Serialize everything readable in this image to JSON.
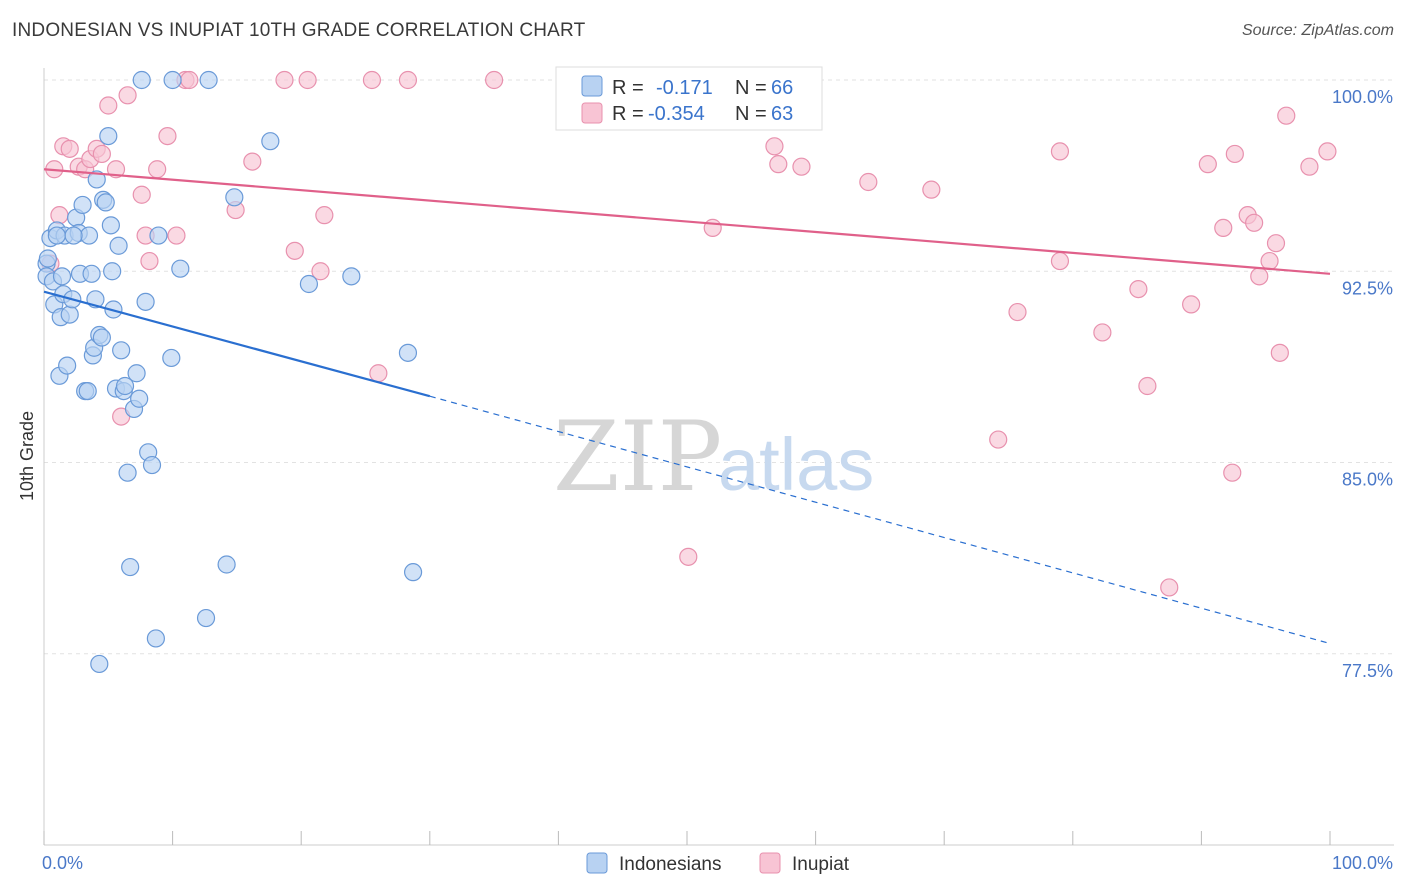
{
  "title": "INDONESIAN VS INUPIAT 10TH GRADE CORRELATION CHART",
  "source": "Source: ZipAtlas.com",
  "watermark": {
    "zip": "ZIP",
    "atlas": "atlas"
  },
  "colors": {
    "blue_fill": "#b8d2f2",
    "blue_stroke": "#6a9ad8",
    "blue_line": "#2a6fd0",
    "pink_fill": "#f8c4d4",
    "pink_stroke": "#e891ae",
    "pink_line": "#e0608a",
    "tick_text": "#4a78c8",
    "grid": "#e2e2e2"
  },
  "legend": {
    "rows": [
      {
        "r_label": "R = ",
        "r_value": "-0.171",
        "n_label": "N = ",
        "n_value": "66"
      },
      {
        "r_label": "R = ",
        "r_value": "-0.354",
        "n_label": "N = ",
        "n_value": "63"
      }
    ]
  },
  "chart_data": {
    "type": "scatter",
    "xlabel": "",
    "ylabel": "10th Grade",
    "xlim": [
      0,
      100
    ],
    "ylim": [
      70.0,
      100.5
    ],
    "x_tick_labels": [
      "0.0%",
      "100.0%"
    ],
    "y_ticks": [
      77.5,
      85.0,
      92.5,
      100.0
    ],
    "y_tick_labels": [
      "77.5%",
      "85.0%",
      "92.5%",
      "100.0%"
    ],
    "grid": true,
    "legend_position": "bottom",
    "series": [
      {
        "name": "Indonesians",
        "color": "#b8d2f2",
        "trend": {
          "x": [
            0,
            30
          ],
          "y": [
            91.7,
            87.6
          ],
          "dashed_to": [
            100,
            77.9
          ]
        },
        "points": [
          [
            0.2,
            92.8
          ],
          [
            0.2,
            92.3
          ],
          [
            0.3,
            93.0
          ],
          [
            0.5,
            93.8
          ],
          [
            0.7,
            92.1
          ],
          [
            0.8,
            91.2
          ],
          [
            1.0,
            94.1
          ],
          [
            1.2,
            88.4
          ],
          [
            1.3,
            90.7
          ],
          [
            1.5,
            91.6
          ],
          [
            1.6,
            93.9
          ],
          [
            1.8,
            88.8
          ],
          [
            2.0,
            90.8
          ],
          [
            2.2,
            91.4
          ],
          [
            2.5,
            94.6
          ],
          [
            2.7,
            94.0
          ],
          [
            2.8,
            92.4
          ],
          [
            3.0,
            95.1
          ],
          [
            3.2,
            87.8
          ],
          [
            3.4,
            87.8
          ],
          [
            3.5,
            93.9
          ],
          [
            3.7,
            92.4
          ],
          [
            3.8,
            89.2
          ],
          [
            3.9,
            89.5
          ],
          [
            4.0,
            91.4
          ],
          [
            4.1,
            96.1
          ],
          [
            4.3,
            90.0
          ],
          [
            4.5,
            89.9
          ],
          [
            4.6,
            95.3
          ],
          [
            4.8,
            95.2
          ],
          [
            5.0,
            97.8
          ],
          [
            5.2,
            94.3
          ],
          [
            5.3,
            92.5
          ],
          [
            5.4,
            91.0
          ],
          [
            5.6,
            87.9
          ],
          [
            5.8,
            93.5
          ],
          [
            6.0,
            89.4
          ],
          [
            6.2,
            87.8
          ],
          [
            6.3,
            88.0
          ],
          [
            6.5,
            84.6
          ],
          [
            6.7,
            80.9
          ],
          [
            7.0,
            87.1
          ],
          [
            7.2,
            88.5
          ],
          [
            7.4,
            87.5
          ],
          [
            7.6,
            100.0
          ],
          [
            7.9,
            91.3
          ],
          [
            8.1,
            85.4
          ],
          [
            8.4,
            84.9
          ],
          [
            8.7,
            78.1
          ],
          [
            8.9,
            93.9
          ],
          [
            9.9,
            89.1
          ],
          [
            10.0,
            100.0
          ],
          [
            10.6,
            92.6
          ],
          [
            12.8,
            100.0
          ],
          [
            12.6,
            78.9
          ],
          [
            14.2,
            81.0
          ],
          [
            14.8,
            95.4
          ],
          [
            17.6,
            97.6
          ],
          [
            20.6,
            92.0
          ],
          [
            23.9,
            92.3
          ],
          [
            28.3,
            89.3
          ],
          [
            28.7,
            80.7
          ],
          [
            4.3,
            77.1
          ],
          [
            1.0,
            93.9
          ],
          [
            1.4,
            92.3
          ],
          [
            2.3,
            93.9
          ]
        ]
      },
      {
        "name": "Inupiat",
        "color": "#f8c4d4",
        "trend": {
          "x": [
            0,
            100
          ],
          "y": [
            96.5,
            92.4
          ]
        },
        "points": [
          [
            0.5,
            92.8
          ],
          [
            0.8,
            96.5
          ],
          [
            1.2,
            94.7
          ],
          [
            1.5,
            97.4
          ],
          [
            2.0,
            97.3
          ],
          [
            2.7,
            96.6
          ],
          [
            3.2,
            96.5
          ],
          [
            3.6,
            96.9
          ],
          [
            4.1,
            97.3
          ],
          [
            4.5,
            97.1
          ],
          [
            5.0,
            99.0
          ],
          [
            5.6,
            96.5
          ],
          [
            6.0,
            86.8
          ],
          [
            6.5,
            99.4
          ],
          [
            7.6,
            95.5
          ],
          [
            7.9,
            93.9
          ],
          [
            8.2,
            92.9
          ],
          [
            8.8,
            96.5
          ],
          [
            9.6,
            97.8
          ],
          [
            10.3,
            93.9
          ],
          [
            11.0,
            100.0
          ],
          [
            11.3,
            100.0
          ],
          [
            14.9,
            94.9
          ],
          [
            16.2,
            96.8
          ],
          [
            18.7,
            100.0
          ],
          [
            19.5,
            93.3
          ],
          [
            20.5,
            100.0
          ],
          [
            21.5,
            92.5
          ],
          [
            21.8,
            94.7
          ],
          [
            25.5,
            100.0
          ],
          [
            26.0,
            88.5
          ],
          [
            28.3,
            100.0
          ],
          [
            35.0,
            100.0
          ],
          [
            47.1,
            100.0
          ],
          [
            50.1,
            81.3
          ],
          [
            52.0,
            94.2
          ],
          [
            56.8,
            97.4
          ],
          [
            57.1,
            96.7
          ],
          [
            58.9,
            96.6
          ],
          [
            64.1,
            96.0
          ],
          [
            69.0,
            95.7
          ],
          [
            74.2,
            85.9
          ],
          [
            75.7,
            90.9
          ],
          [
            79.0,
            97.2
          ],
          [
            79.0,
            92.9
          ],
          [
            82.3,
            90.1
          ],
          [
            85.1,
            91.8
          ],
          [
            85.8,
            88.0
          ],
          [
            87.5,
            80.1
          ],
          [
            89.2,
            91.2
          ],
          [
            90.5,
            96.7
          ],
          [
            91.7,
            94.2
          ],
          [
            92.4,
            84.6
          ],
          [
            92.6,
            97.1
          ],
          [
            93.6,
            94.7
          ],
          [
            94.1,
            94.4
          ],
          [
            94.5,
            92.3
          ],
          [
            95.3,
            92.9
          ],
          [
            95.8,
            93.6
          ],
          [
            96.1,
            89.3
          ],
          [
            96.6,
            98.6
          ],
          [
            98.4,
            96.6
          ],
          [
            99.8,
            97.2
          ]
        ]
      }
    ]
  }
}
